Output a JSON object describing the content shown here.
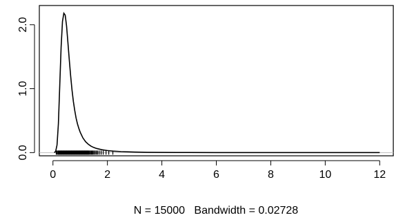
{
  "chart_data": {
    "type": "line",
    "title": "",
    "xlabel": "N = 15000   Bandwidth = 0.02728",
    "ylabel": "",
    "xlim": [
      -0.5,
      12.5
    ],
    "ylim": [
      -0.05,
      2.3
    ],
    "xticks": [
      0,
      2,
      4,
      6,
      8,
      10,
      12
    ],
    "xtick_labels": [
      "0",
      "2",
      "4",
      "6",
      "8",
      "10",
      "12"
    ],
    "yticks": [
      0.0,
      1.0,
      2.0
    ],
    "ytick_labels": [
      "0.0",
      "1.0",
      "2.0"
    ],
    "grid": false,
    "legend": "none",
    "series": [
      {
        "x": [
          0.05,
          0.1,
          0.15,
          0.2,
          0.25,
          0.3,
          0.35,
          0.4,
          0.45,
          0.5,
          0.55,
          0.6,
          0.65,
          0.7,
          0.75,
          0.8,
          0.85,
          0.9,
          0.95,
          1.0,
          1.1,
          1.2,
          1.3,
          1.4,
          1.5,
          1.6,
          1.8,
          2.0,
          2.2,
          2.5,
          3.0,
          3.5,
          4.0,
          5.0,
          6.0,
          8.0,
          10.0,
          12.0
        ],
        "y": [
          0.0,
          0.02,
          0.12,
          0.45,
          1.05,
          1.65,
          2.05,
          2.18,
          2.15,
          1.98,
          1.72,
          1.45,
          1.2,
          0.98,
          0.8,
          0.66,
          0.54,
          0.45,
          0.38,
          0.32,
          0.23,
          0.17,
          0.13,
          0.1,
          0.08,
          0.065,
          0.045,
          0.032,
          0.024,
          0.016,
          0.009,
          0.005,
          0.003,
          0.0015,
          0.0008,
          0.0003,
          0.0001,
          0.0
        ]
      }
    ],
    "rug_x": [
      0.12,
      0.15,
      0.18,
      0.2,
      0.22,
      0.24,
      0.26,
      0.28,
      0.3,
      0.32,
      0.34,
      0.36,
      0.38,
      0.4,
      0.42,
      0.44,
      0.46,
      0.48,
      0.5,
      0.52,
      0.54,
      0.56,
      0.58,
      0.6,
      0.62,
      0.64,
      0.66,
      0.68,
      0.7,
      0.72,
      0.74,
      0.76,
      0.78,
      0.8,
      0.82,
      0.84,
      0.86,
      0.88,
      0.9,
      0.92,
      0.94,
      0.96,
      0.98,
      1.0,
      1.02,
      1.04,
      1.06,
      1.08,
      1.1,
      1.12,
      1.14,
      1.16,
      1.18,
      1.2,
      1.22,
      1.24,
      1.26,
      1.28,
      1.3,
      1.32,
      1.35,
      1.38,
      1.41,
      1.44,
      1.47,
      1.5,
      1.54,
      1.58,
      1.62,
      1.66,
      1.72,
      1.78,
      1.85,
      1.95,
      2.05,
      2.2
    ]
  }
}
